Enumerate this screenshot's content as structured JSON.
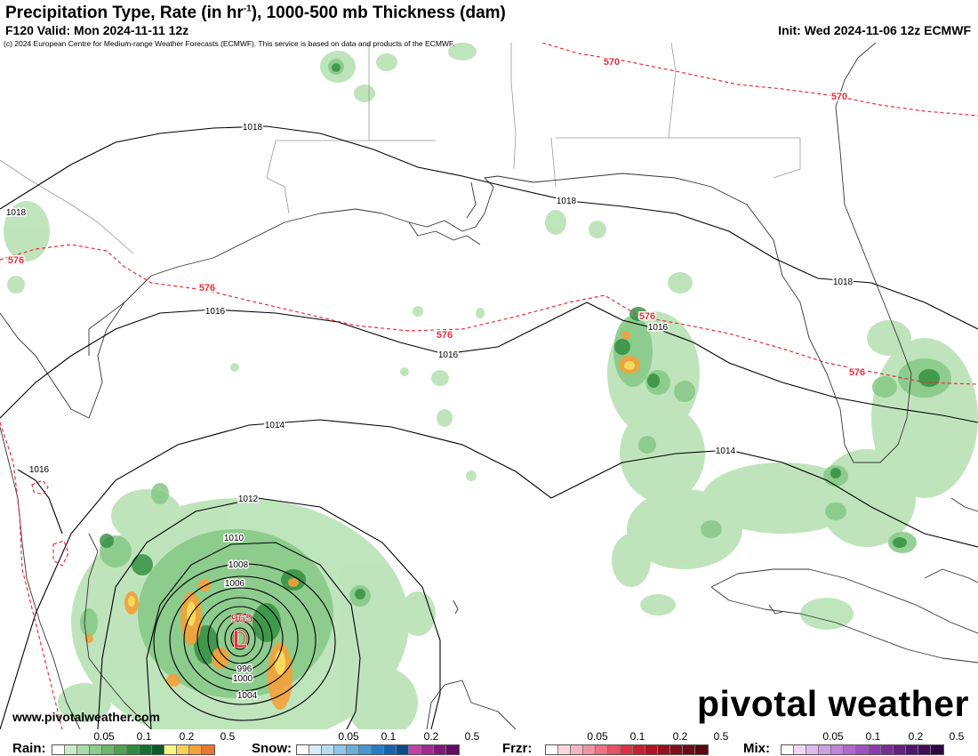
{
  "header": {
    "title_main": "Precipitation Type, Rate (in hr",
    "title_sup": "-1",
    "title_rest": "), 1000-500 mb Thickness (dam)",
    "valid": "F120 Valid: Mon 2024-11-11 12z",
    "init": "Init: Wed 2024-11-06 12z ECMWF",
    "copyright": "(c) 2024 European Centre for Medium-range Weather Forecasts (ECMWF). This service is based on data and products of the ECMWF."
  },
  "map": {
    "isobar_labels": [
      "1018",
      "1018",
      "1018",
      "1018",
      "1016",
      "1016",
      "1016",
      "1016",
      "1014",
      "1014",
      "1012",
      "1010",
      "1008",
      "1006",
      "1004",
      "1000",
      "996"
    ],
    "thickness_labels": [
      "570",
      "570",
      "576",
      "576",
      "576",
      "576",
      "576"
    ],
    "low": {
      "symbol": "L",
      "pressure": "965"
    },
    "colors": {
      "isobar": "#000000",
      "thickness": "#e8303a",
      "low": "#e8303a",
      "coast": "#333333",
      "border": "#999999"
    }
  },
  "branding": {
    "logo_text": "pivotal weather",
    "website": "www.pivotalweather.com"
  },
  "legend": {
    "rain": {
      "title": "Rain:",
      "ticks": [
        "0.05",
        "0.1",
        "0.2",
        "0.5"
      ],
      "colors": [
        "#ffffff",
        "#c8ecc8",
        "#a8dca8",
        "#8ccc8c",
        "#6cb86c",
        "#4ca44c",
        "#2e8c3e",
        "#177031",
        "#0c5a28",
        "#f5f580",
        "#f8d050",
        "#f5a038",
        "#e87830"
      ]
    },
    "snow": {
      "title": "Snow:",
      "ticks": [
        "0.05",
        "0.1",
        "0.2",
        "0.5"
      ],
      "colors": [
        "#ffffff",
        "#d8ecf8",
        "#b8dcf2",
        "#90c6ea",
        "#68aede",
        "#4896d2",
        "#2a7cc2",
        "#1664ae",
        "#0a4a8e",
        "#c040a8",
        "#a02890",
        "#801878",
        "#600c60"
      ]
    },
    "frzr": {
      "title": "Frzr:",
      "ticks": [
        "0.05",
        "0.1",
        "0.2",
        "0.5"
      ],
      "colors": [
        "#ffffff",
        "#fbd8dc",
        "#f6b6be",
        "#f294a0",
        "#ee7282",
        "#e85064",
        "#e03046",
        "#c8202e",
        "#b01424",
        "#98101e",
        "#801018",
        "#6e0c14",
        "#5a0810"
      ]
    },
    "mix": {
      "title": "Mix:",
      "ticks": [
        "0.05",
        "0.1",
        "0.2",
        "0.5"
      ],
      "colors": [
        "#ffffff",
        "#f0d8f4",
        "#e0bcec",
        "#d0a0e2",
        "#c084d8",
        "#b068cc",
        "#a050c0",
        "#8c3cae",
        "#782c98",
        "#642082",
        "#50166c",
        "#400c58",
        "#300644"
      ]
    }
  }
}
